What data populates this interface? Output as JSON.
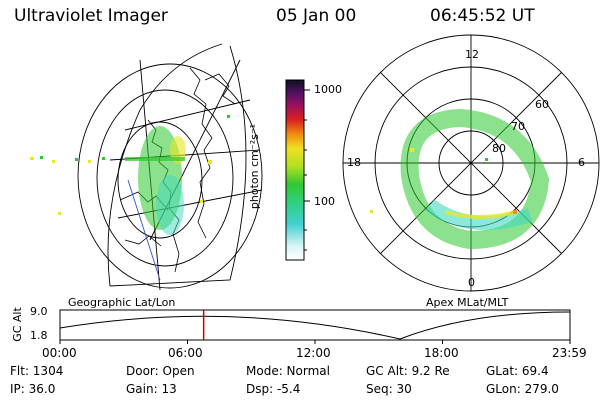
{
  "header": {
    "instrument": "Ultraviolet Imager",
    "date": "05 Jan 00",
    "time": "06:45:52 UT"
  },
  "colorbar": {
    "label": "photon cm⁻²s⁻¹",
    "ticks": [
      "1000",
      "100"
    ]
  },
  "left_panel": {
    "label": "Geographic Lat/Lon"
  },
  "right_panel": {
    "label": "Apex  MLat/MLT",
    "mlt_labels": [
      "12",
      "18",
      "6",
      "0"
    ],
    "lat_labels": [
      "60",
      "70",
      "80"
    ]
  },
  "altitude_plot": {
    "ylabel": "GC Alt",
    "yticks": [
      "9.0",
      "1.8"
    ],
    "xticks": [
      "00:00",
      "06:00",
      "12:00",
      "18:00",
      "23:59"
    ],
    "current_time_hours": 6.76
  },
  "info": {
    "flt": "Flt: 1304",
    "ip": "IP: 36.0",
    "door": "Door: Open",
    "gain": "Gain: 13",
    "mode": "Mode: Normal",
    "dsp": "Dsp:    -5.4",
    "gcalt": "GC Alt: 9.2 Re",
    "seq": "Seq: 30",
    "glat": "GLat:  69.4",
    "glon": "GLon: 279.0"
  },
  "colors": {
    "aurora_green": "#2ec82e",
    "aurora_cyan": "#40d8c0",
    "aurora_yellow": "#e8e820",
    "marker_red": "#d00000"
  }
}
